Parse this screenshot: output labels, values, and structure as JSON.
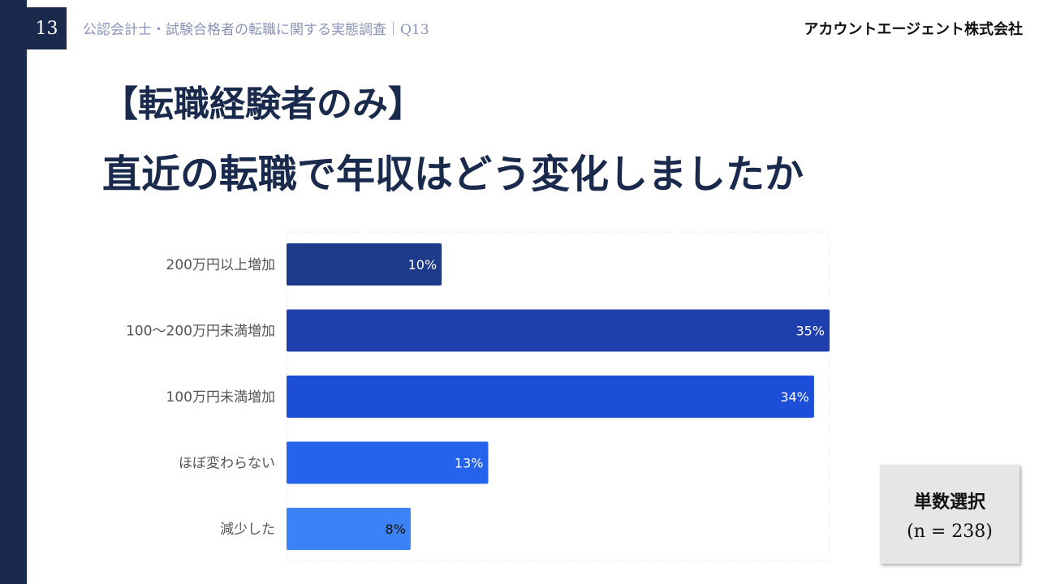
{
  "header": {
    "page_number": "13",
    "survey_title": "公認会計士・試験合格者の転職に関する実態調査｜Q13",
    "company": "アカウントエージェント株式会社"
  },
  "headline": {
    "line1": "【転職経験者のみ】",
    "line2": "直近の転職で年収はどう変化しましたか"
  },
  "note": {
    "selection": "単数選択",
    "sample": "(n = 238)"
  },
  "chart_data": {
    "type": "bar",
    "orientation": "horizontal",
    "categories": [
      "200万円以上増加",
      "100～200万円未満増加",
      "100万円未満増加",
      "ほぼ変わらない",
      "減少した"
    ],
    "values": [
      10,
      35,
      34,
      13,
      8
    ],
    "data_labels": [
      "10%",
      "35%",
      "34%",
      "13%",
      "8%"
    ],
    "colors": [
      "#1e3a8a",
      "#1e40af",
      "#1d4ed8",
      "#2563eb",
      "#3b82f6"
    ],
    "xlim": [
      0,
      35
    ],
    "grid": false
  }
}
